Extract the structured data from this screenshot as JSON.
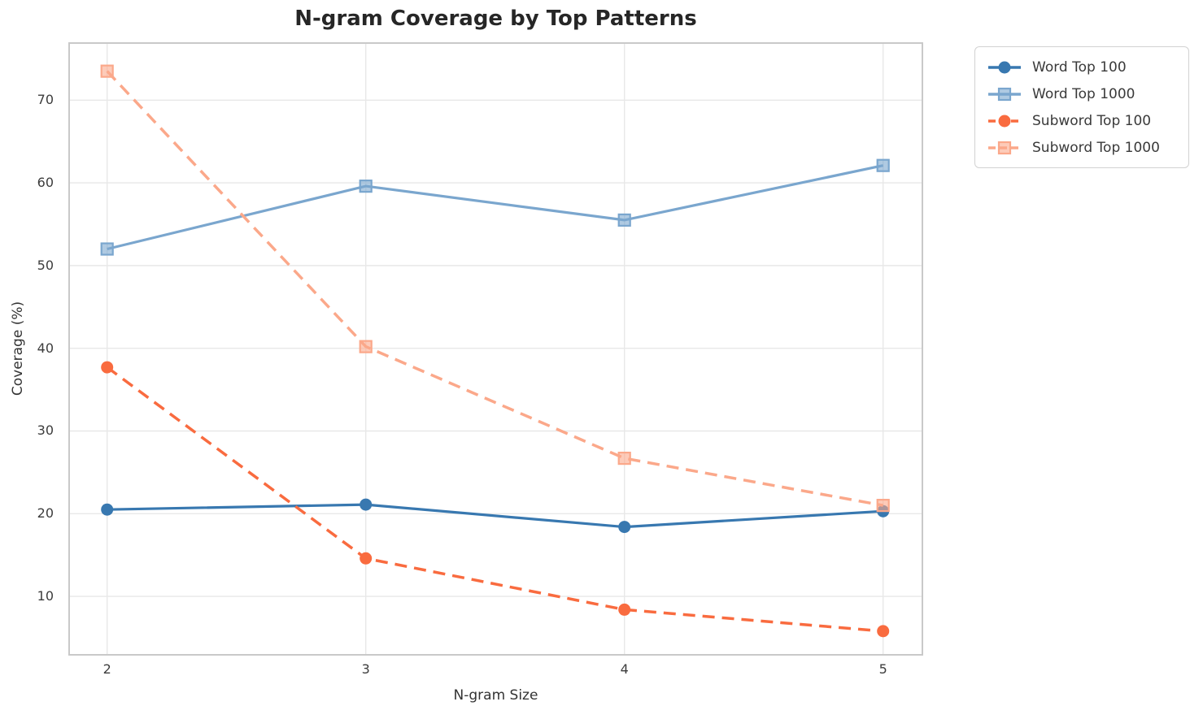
{
  "chart_data": {
    "type": "line",
    "title": "N-gram Coverage by Top Patterns",
    "xlabel": "N-gram Size",
    "ylabel": "Coverage (%)",
    "x": [
      2,
      3,
      4,
      5
    ],
    "xticks": [
      "2",
      "3",
      "4",
      "5"
    ],
    "yticks": [
      "10",
      "20",
      "30",
      "40",
      "50",
      "60",
      "70"
    ],
    "ytick_values": [
      10,
      20,
      30,
      40,
      50,
      60,
      70
    ],
    "xlim": [
      1.85,
      5.155
    ],
    "ylim": [
      2.84,
      77.0
    ],
    "grid": true,
    "legend_position": "outside-upper-right",
    "series": [
      {
        "name": "Word Top 100",
        "values": [
          20.5,
          21.1,
          18.4,
          20.3
        ],
        "color": "#3878b0",
        "marker": "circle",
        "line": "solid"
      },
      {
        "name": "Word Top 1000",
        "values": [
          52.0,
          59.6,
          55.5,
          62.1
        ],
        "color": "#7aa6ce",
        "marker": "square",
        "line": "solid"
      },
      {
        "name": "Subword Top 100",
        "values": [
          37.7,
          14.6,
          8.4,
          5.8
        ],
        "color": "#f96b3f",
        "marker": "circle",
        "line": "dashed"
      },
      {
        "name": "Subword Top 1000",
        "values": [
          73.5,
          40.2,
          26.7,
          21.0
        ],
        "color": "#fba88a",
        "marker": "square",
        "line": "dashed"
      }
    ],
    "style": {
      "grid_color": "#e8e8e8",
      "spine_color": "#c9c9c9",
      "background": "#ffffff"
    }
  }
}
